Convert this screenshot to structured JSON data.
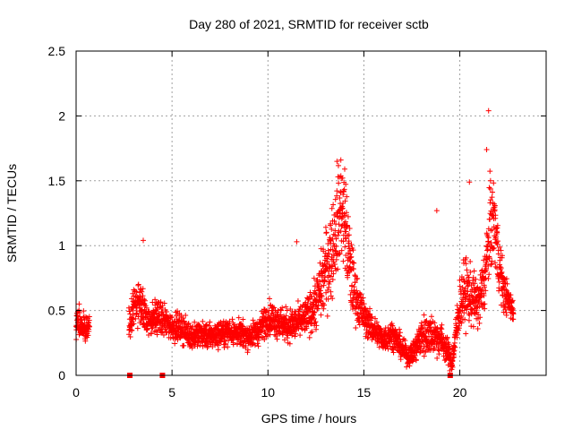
{
  "chart_data": {
    "type": "scatter",
    "title": "Day 280 of 2021, SRMTID for receiver sctb",
    "xlabel": "GPS time / hours",
    "ylabel": "SRMTID / TECUs",
    "xlim": [
      0,
      24.5
    ],
    "ylim": [
      0,
      2.5
    ],
    "xticks": [
      0,
      5,
      10,
      15,
      20
    ],
    "xtick_labels": [
      "0",
      "5",
      "10",
      "15",
      "20"
    ],
    "yticks": [
      0,
      0.5,
      1,
      1.5,
      2,
      2.5
    ],
    "ytick_labels": [
      "0",
      "0.5",
      "1",
      "1.5",
      "2",
      "2.5"
    ],
    "grid": true,
    "marker": "+",
    "marker_color": "#ff0000",
    "series": [
      {
        "name": "SRMTID",
        "envelope": {
          "x": [
            0.0,
            0.3,
            0.6,
            2.8,
            3.0,
            3.3,
            3.5,
            3.8,
            4.2,
            4.6,
            5.0,
            5.5,
            6.0,
            6.5,
            7.0,
            7.5,
            8.0,
            8.5,
            9.0,
            9.5,
            10.0,
            10.5,
            11.0,
            11.5,
            12.0,
            12.5,
            13.0,
            13.3,
            13.6,
            13.8,
            14.0,
            14.3,
            14.6,
            15.0,
            15.5,
            16.0,
            16.5,
            17.0,
            17.3,
            17.6,
            18.0,
            18.5,
            19.0,
            19.3,
            19.6,
            20.0,
            20.3,
            20.6,
            21.0,
            21.3,
            21.6,
            21.8,
            22.0,
            22.3,
            22.6,
            22.8
          ],
          "y": [
            0.4,
            0.38,
            0.35,
            0.4,
            0.55,
            0.55,
            0.5,
            0.42,
            0.45,
            0.42,
            0.38,
            0.36,
            0.3,
            0.32,
            0.3,
            0.32,
            0.34,
            0.32,
            0.3,
            0.34,
            0.45,
            0.42,
            0.38,
            0.4,
            0.45,
            0.55,
            0.8,
            0.95,
            1.15,
            1.3,
            1.2,
            0.8,
            0.6,
            0.45,
            0.35,
            0.28,
            0.32,
            0.2,
            0.15,
            0.18,
            0.3,
            0.32,
            0.28,
            0.2,
            0.1,
            0.55,
            0.65,
            0.6,
            0.55,
            0.75,
            1.15,
            1.2,
            0.9,
            0.65,
            0.55,
            0.5
          ],
          "spread": [
            0.12,
            0.1,
            0.1,
            0.12,
            0.14,
            0.18,
            0.15,
            0.12,
            0.12,
            0.11,
            0.1,
            0.1,
            0.09,
            0.09,
            0.09,
            0.09,
            0.09,
            0.09,
            0.09,
            0.1,
            0.12,
            0.12,
            0.12,
            0.12,
            0.13,
            0.18,
            0.3,
            0.35,
            0.35,
            0.35,
            0.35,
            0.3,
            0.18,
            0.12,
            0.1,
            0.09,
            0.1,
            0.08,
            0.07,
            0.08,
            0.15,
            0.15,
            0.12,
            0.1,
            0.08,
            0.2,
            0.25,
            0.2,
            0.18,
            0.25,
            0.35,
            0.3,
            0.25,
            0.15,
            0.1,
            0.08
          ],
          "gaps": [
            [
              0.7,
              2.75
            ],
            [
              22.9,
              24.5
            ]
          ]
        },
        "notable_points": [
          {
            "x": 3.5,
            "y": 1.04
          },
          {
            "x": 11.5,
            "y": 1.03
          },
          {
            "x": 13.6,
            "y": 1.65
          },
          {
            "x": 13.8,
            "y": 1.66
          },
          {
            "x": 14.0,
            "y": 1.59
          },
          {
            "x": 18.8,
            "y": 1.27
          },
          {
            "x": 20.5,
            "y": 1.49
          },
          {
            "x": 21.4,
            "y": 1.74
          },
          {
            "x": 21.5,
            "y": 2.04
          },
          {
            "x": 21.6,
            "y": 1.5
          }
        ]
      },
      {
        "name": "zero markers",
        "marker": "square",
        "points": [
          {
            "x": 2.8,
            "y": 0
          },
          {
            "x": 4.5,
            "y": 0
          },
          {
            "x": 19.5,
            "y": 0
          }
        ]
      }
    ]
  }
}
